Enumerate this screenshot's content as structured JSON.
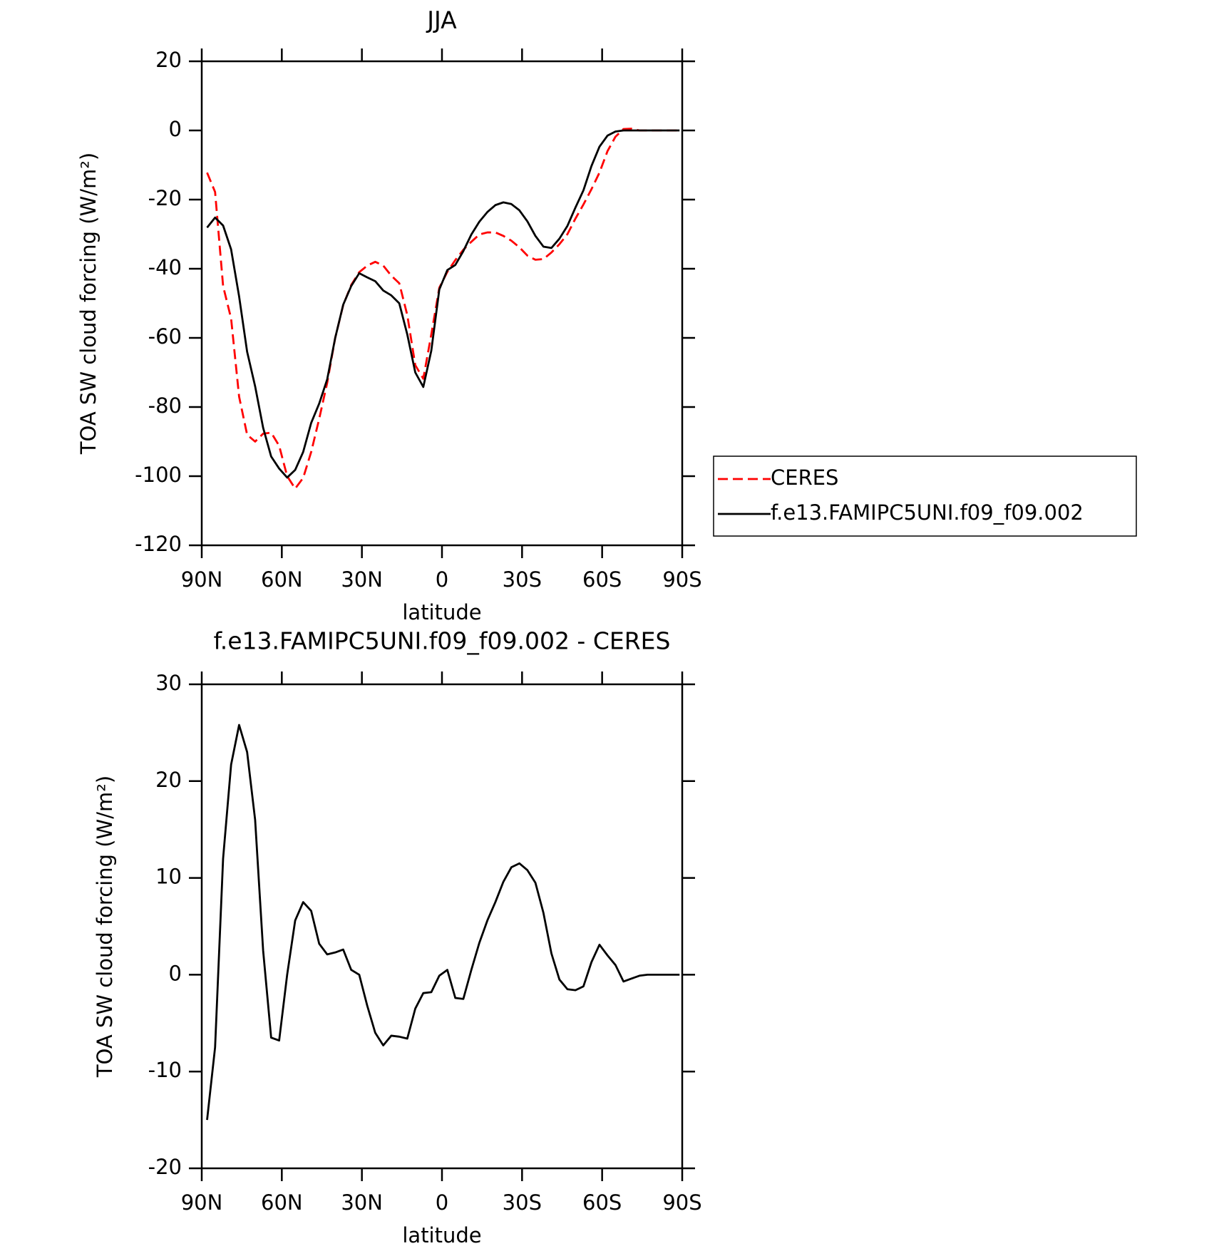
{
  "chart_data": [
    {
      "type": "line",
      "title": "JJA",
      "xlabel": "latitude",
      "ylabel": "TOA SW cloud forcing (W/m²)",
      "xlim": [
        90,
        -90
      ],
      "ylim": [
        -120,
        20
      ],
      "xticks": [
        {
          "value": 90,
          "label": "90N"
        },
        {
          "value": 60,
          "label": "60N"
        },
        {
          "value": 30,
          "label": "30N"
        },
        0,
        {
          "value": -30,
          "label": "30S"
        },
        {
          "value": -60,
          "label": "60S"
        },
        {
          "value": -90,
          "label": "90S"
        }
      ],
      "yticks": [
        -120,
        -100,
        -80,
        -60,
        -40,
        -20,
        0,
        20
      ],
      "legend": "right",
      "x": [
        88,
        85,
        82,
        79,
        76,
        73,
        70,
        67,
        64,
        61,
        58,
        55,
        52,
        49,
        46,
        43,
        40,
        37,
        34,
        31,
        28,
        25,
        22,
        19,
        16,
        13,
        10,
        7,
        4,
        1,
        -2,
        -5,
        -8,
        -11,
        -14,
        -17,
        -20,
        -23,
        -26,
        -29,
        -32,
        -35,
        -38,
        -41,
        -44,
        -47,
        -50,
        -53,
        -56,
        -59,
        -62,
        -65,
        -68,
        -71,
        -74,
        -77,
        -80,
        -83,
        -86,
        -89
      ],
      "series": [
        {
          "name": "CERES",
          "color": "#ff0000",
          "dash": true,
          "values": [
            -12.2,
            -17.8,
            -45,
            -54.4,
            -77,
            -88,
            -90,
            -87.7,
            -87.4,
            -91.2,
            -100,
            -103.6,
            -100.5,
            -93,
            -83.4,
            -73,
            -60,
            -50.5,
            -44.7,
            -41,
            -39.1,
            -38,
            -39.1,
            -42,
            -44.2,
            -53.4,
            -67.9,
            -71.8,
            -59,
            -45.5,
            -40.9,
            -37.5,
            -34.5,
            -32.2,
            -30.1,
            -29.5,
            -29.5,
            -30.5,
            -31.9,
            -33.8,
            -36.2,
            -37.4,
            -37.2,
            -35.3,
            -32.9,
            -30,
            -25.5,
            -21.4,
            -17,
            -12.2,
            -6,
            -1.8,
            0.4,
            0.5,
            0,
            0,
            0,
            0,
            0,
            0
          ]
        },
        {
          "name": "f.e13.FAMIPC5UNI.f09_f09.002",
          "color": "#000000",
          "dash": false,
          "values": [
            -28.1,
            -25.2,
            -27.5,
            -34.4,
            -48,
            -64,
            -74,
            -86,
            -94.3,
            -97.8,
            -100.4,
            -98.2,
            -93,
            -84.6,
            -79,
            -72,
            -60,
            -50.4,
            -45,
            -41.3,
            -42.5,
            -43.6,
            -46.3,
            -47.7,
            -50,
            -59,
            -70,
            -74.2,
            -63.7,
            -46,
            -40.4,
            -38.9,
            -34.9,
            -30.1,
            -26.4,
            -23.6,
            -21.6,
            -20.8,
            -21.3,
            -23.1,
            -26.3,
            -30.5,
            -33.6,
            -34,
            -31.3,
            -27.6,
            -22.3,
            -17.3,
            -10.3,
            -4.7,
            -1.5,
            -0.3,
            0,
            0,
            0,
            0,
            0,
            0,
            0,
            0
          ]
        }
      ]
    },
    {
      "type": "line",
      "title": "f.e13.FAMIPC5UNI.f09_f09.002 - CERES",
      "xlabel": "latitude",
      "ylabel": "TOA SW cloud forcing (W/m²)",
      "xlim": [
        90,
        -90
      ],
      "ylim": [
        -20,
        30
      ],
      "xticks": [
        {
          "value": 90,
          "label": "90N"
        },
        {
          "value": 60,
          "label": "60N"
        },
        {
          "value": 30,
          "label": "30N"
        },
        0,
        {
          "value": -30,
          "label": "30S"
        },
        {
          "value": -60,
          "label": "60S"
        },
        {
          "value": -90,
          "label": "90S"
        }
      ],
      "yticks": [
        -20,
        -10,
        0,
        10,
        20,
        30
      ],
      "x": [
        88,
        85,
        82,
        79,
        76,
        73,
        70,
        67,
        64,
        61,
        58,
        55,
        52,
        49,
        46,
        43,
        40,
        37,
        34,
        31,
        28,
        25,
        22,
        19,
        16,
        13,
        10,
        7,
        4,
        1,
        -2,
        -5,
        -8,
        -11,
        -14,
        -17,
        -20,
        -23,
        -26,
        -29,
        -32,
        -35,
        -38,
        -41,
        -44,
        -47,
        -50,
        -53,
        -56,
        -59,
        -62,
        -65,
        -68,
        -71,
        -74,
        -77,
        -80,
        -83,
        -86,
        -89
      ],
      "series": [
        {
          "color": "#000000",
          "dash": false,
          "values": [
            -15,
            -7.5,
            12,
            21.7,
            25.8,
            23,
            16,
            2.5,
            -6.5,
            -6.8,
            0,
            5.6,
            7.5,
            6.6,
            3.2,
            2.1,
            2.3,
            2.6,
            0.5,
            0,
            -3.2,
            -6,
            -7.3,
            -6.3,
            -6.4,
            -6.6,
            -3.5,
            -1.9,
            -1.8,
            -0.1,
            0.5,
            -2.4,
            -2.5,
            0.5,
            3.3,
            5.6,
            7.5,
            9.6,
            11.1,
            11.5,
            10.8,
            9.5,
            6.4,
            2.2,
            -0.5,
            -1.5,
            -1.6,
            -1.2,
            1.3,
            3.1,
            2,
            1,
            -0.7,
            -0.4,
            -0.1,
            0,
            0,
            0,
            0,
            0
          ]
        }
      ]
    }
  ]
}
